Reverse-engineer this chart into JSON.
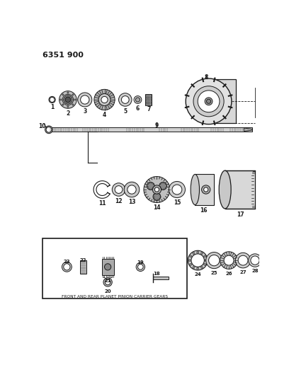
{
  "title": "6351 900",
  "bg": "#ffffff",
  "lc": "#1a1a1a",
  "figsize": [
    4.08,
    5.33
  ],
  "dpi": 100,
  "box_label": "FRONT AND REAR PLANET PINION CARRIER GEARS"
}
